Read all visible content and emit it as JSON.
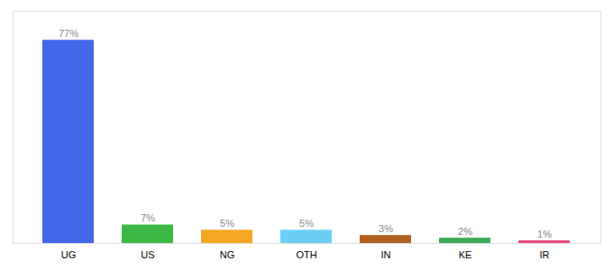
{
  "chart_data": {
    "type": "bar",
    "categories": [
      "UG",
      "US",
      "NG",
      "OTH",
      "IN",
      "KE",
      "IR"
    ],
    "values": [
      77,
      7,
      5,
      5,
      3,
      2,
      1
    ],
    "value_labels": [
      "77%",
      "7%",
      "5%",
      "5%",
      "3%",
      "2%",
      "1%"
    ],
    "colors": [
      "#4466e8",
      "#3cb944",
      "#f5a623",
      "#6bcff5",
      "#b06020",
      "#3aaa55",
      "#e8457a"
    ],
    "ylim": [
      0,
      88
    ],
    "grid": false,
    "data_labels": true,
    "tick_labels": "x"
  }
}
